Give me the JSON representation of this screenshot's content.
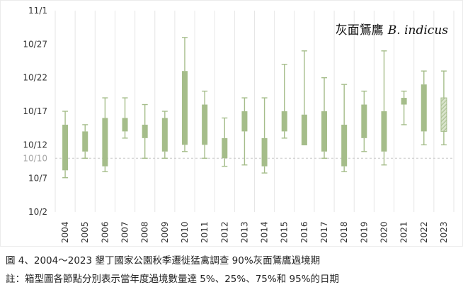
{
  "chart_data": {
    "type": "box",
    "title": "灰面鵟鷹",
    "title_italic": "B. indicus",
    "y_axis": {
      "ticks": [
        "10/2",
        "10/7",
        "10/12",
        "10/17",
        "10/22",
        "10/27",
        "11/1"
      ],
      "tick_days": [
        2,
        7,
        12,
        17,
        22,
        27,
        32
      ],
      "range_days": [
        2,
        32
      ],
      "reference_label": "10/10",
      "reference_day": 10,
      "day_unit": "day of October (10/1 = 1; 11/1 = 32)"
    },
    "grid": "vertical lines between years",
    "box_color": "#a5bd8a",
    "reference_line_color": "#c8c8c8",
    "series": [
      {
        "year": "2004",
        "p5": 7.1,
        "p25": 8.2,
        "p75": 15.0,
        "p95": 17.0
      },
      {
        "year": "2005",
        "p5": 10.0,
        "p25": 11.0,
        "p75": 14.0,
        "p95": 15.0
      },
      {
        "year": "2006",
        "p5": 8.0,
        "p25": 8.8,
        "p75": 16.0,
        "p95": 19.0
      },
      {
        "year": "2007",
        "p5": 13.0,
        "p25": 14.0,
        "p75": 16.0,
        "p95": 19.0
      },
      {
        "year": "2008",
        "p5": 10.0,
        "p25": 13.0,
        "p75": 15.0,
        "p95": 18.0
      },
      {
        "year": "2009",
        "p5": 10.0,
        "p25": 11.0,
        "p75": 16.0,
        "p95": 17.0
      },
      {
        "year": "2010",
        "p5": 11.0,
        "p25": 12.0,
        "p75": 23.0,
        "p95": 28.0
      },
      {
        "year": "2011",
        "p5": 10.0,
        "p25": 12.0,
        "p75": 18.0,
        "p95": 20.0
      },
      {
        "year": "2012",
        "p5": 8.8,
        "p25": 10.0,
        "p75": 13.0,
        "p95": 16.0
      },
      {
        "year": "2013",
        "p5": 9.0,
        "p25": 14.0,
        "p75": 17.0,
        "p95": 19.0
      },
      {
        "year": "2014",
        "p5": 7.8,
        "p25": 8.8,
        "p75": 13.0,
        "p95": 19.0
      },
      {
        "year": "2015",
        "p5": 13.0,
        "p25": 14.0,
        "p75": 17.0,
        "p95": 24.0
      },
      {
        "year": "2016",
        "p5": 12.0,
        "p25": 12.0,
        "p75": 16.5,
        "p95": 26.0
      },
      {
        "year": "2017",
        "p5": 10.0,
        "p25": 11.0,
        "p75": 17.0,
        "p95": 22.0
      },
      {
        "year": "2018",
        "p5": 8.0,
        "p25": 8.8,
        "p75": 15.0,
        "p95": 21.0
      },
      {
        "year": "2019",
        "p5": 11.0,
        "p25": 13.0,
        "p75": 18.0,
        "p95": 20.0
      },
      {
        "year": "2020",
        "p5": 9.0,
        "p25": 11.0,
        "p75": 17.0,
        "p95": 26.0
      },
      {
        "year": "2021",
        "p5": 15.0,
        "p25": 18.0,
        "p75": 19.0,
        "p95": 20.0
      },
      {
        "year": "2022",
        "p5": 12.0,
        "p25": 14.0,
        "p75": 21.0,
        "p95": 23.0
      },
      {
        "year": "2023",
        "p5": 12.0,
        "p25": 14.0,
        "p75": 19.0,
        "p95": 23.0,
        "pattern": "hatched"
      }
    ]
  },
  "caption": {
    "line1": "圖 4、2004～2023 墾丁國家公園秋季遷徙猛禽調查 90%灰面鵟鷹過境期",
    "line2": "註：箱型圖各節點分別表示當年度過境數量達 5%、25%、75%和 95%的日期"
  }
}
